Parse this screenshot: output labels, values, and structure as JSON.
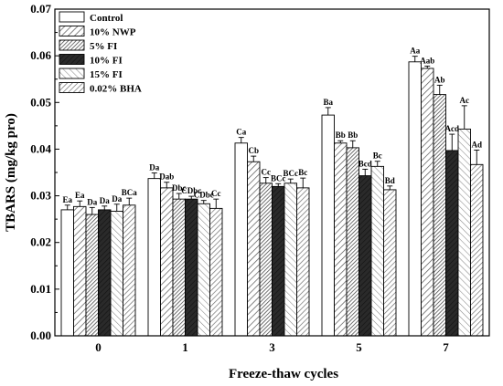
{
  "chart_data": {
    "type": "bar",
    "title": "",
    "xlabel": "Freeze-thaw cycles",
    "ylabel": "TBARS (mg/kg pro)",
    "ylim": [
      0.0,
      0.07
    ],
    "yticks": [
      "0.00",
      "0.01",
      "0.02",
      "0.03",
      "0.04",
      "0.05",
      "0.06",
      "0.07"
    ],
    "categories": [
      "0",
      "1",
      "3",
      "5",
      "7"
    ],
    "legend_position": "top-left",
    "grid": false,
    "series": [
      {
        "name": "Control",
        "pattern": "none",
        "values": [
          0.027,
          0.0337,
          0.0413,
          0.0473,
          0.0587
        ],
        "errors": [
          0.001,
          0.0012,
          0.0012,
          0.0016,
          0.0012
        ],
        "labels": [
          "Ea",
          "Da",
          "Ca",
          "Ba",
          "Aa"
        ]
      },
      {
        "name": "10% NWP",
        "pattern": "diag-sparse",
        "values": [
          0.0277,
          0.0317,
          0.0373,
          0.0413,
          0.0573
        ],
        "errors": [
          0.0012,
          0.0012,
          0.0012,
          0.0005,
          0.0005
        ],
        "labels": [
          "Ea",
          "Dab",
          "Cb",
          "Bb",
          "Aab"
        ]
      },
      {
        "name": "5% FI",
        "pattern": "diag-dense",
        "values": [
          0.026,
          0.0293,
          0.0327,
          0.0403,
          0.0517
        ],
        "errors": [
          0.0015,
          0.0012,
          0.0012,
          0.0015,
          0.002
        ],
        "labels": [
          "Da",
          "Dbc",
          "Cc",
          "Bb",
          "Ab"
        ]
      },
      {
        "name": "10% FI",
        "pattern": "diag-dark",
        "values": [
          0.027,
          0.0293,
          0.032,
          0.0343,
          0.0397
        ],
        "errors": [
          0.0008,
          0.0006,
          0.0006,
          0.0014,
          0.0035
        ],
        "labels": [
          "Da",
          "CDbc",
          "BCc",
          "Bcd",
          "Acd"
        ]
      },
      {
        "name": "15% FI",
        "pattern": "back-sparse",
        "values": [
          0.0267,
          0.0283,
          0.0327,
          0.0363,
          0.0443
        ],
        "errors": [
          0.0015,
          0.0007,
          0.0009,
          0.0011,
          0.005
        ],
        "labels": [
          "Da",
          "CDbc",
          "BCc",
          "Bc",
          "Ac"
        ]
      },
      {
        "name": "0.02% BHA",
        "pattern": "diag-medium",
        "values": [
          0.028,
          0.0273,
          0.0317,
          0.0313,
          0.0367
        ],
        "errors": [
          0.0015,
          0.002,
          0.0021,
          0.0008,
          0.0031
        ],
        "labels": [
          "BCa",
          "Cc",
          "Bc",
          "Bd",
          "Ad"
        ]
      }
    ]
  }
}
